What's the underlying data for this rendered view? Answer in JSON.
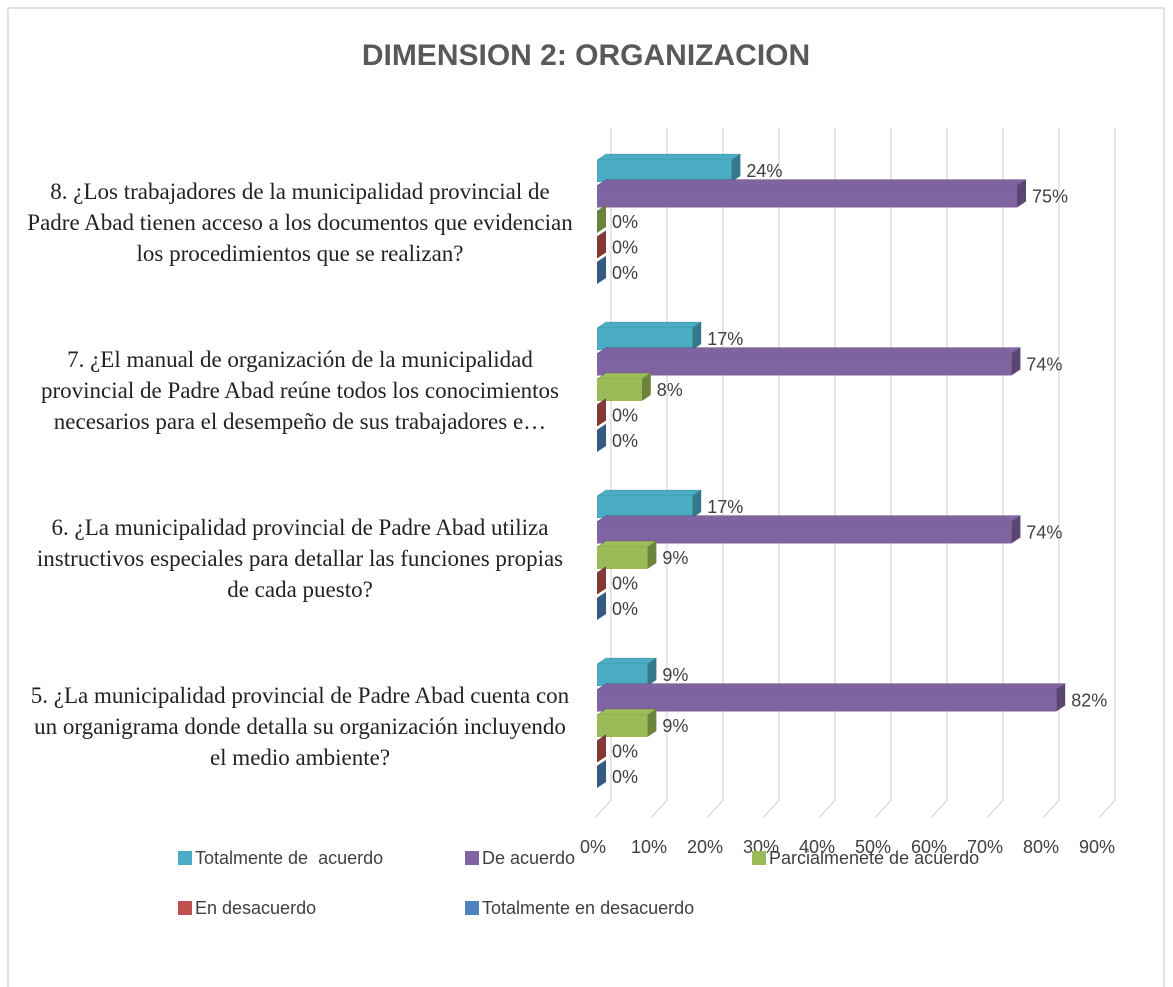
{
  "chart_data": {
    "type": "bar3d_horizontal",
    "title": "DIMENSION 2: ORGANIZACION",
    "categories": [
      "8. ¿Los trabajadores de la municipalidad provincial de Padre Abad tienen acceso a los documentos que evidencian los procedimientos que se realizan?",
      "7. ¿El manual de organización de la municipalidad provincial de Padre Abad reúne todos los conocimientos necesarios para el desempeño de sus trabajadores e…",
      "6. ¿La municipalidad provincial de Padre Abad utiliza instructivos especiales para detallar las funciones propias de cada puesto?",
      "5. ¿La municipalidad provincial de Padre Abad cuenta con un organigrama donde detalla su organización incluyendo el medio ambiente?"
    ],
    "series": [
      {
        "name": "Totalmente de  acuerdo",
        "color": "#4bacc6",
        "values": [
          24,
          17,
          17,
          9
        ],
        "value_labels": [
          "24%",
          "17%",
          "17%",
          "9%"
        ]
      },
      {
        "name": "De acuerdo",
        "color": "#8064a2",
        "values": [
          75,
          74,
          74,
          82
        ],
        "value_labels": [
          "75%",
          "74%",
          "74%",
          "82%"
        ]
      },
      {
        "name": "Parcialmenete de acuerdo",
        "color": "#9bbb59",
        "values": [
          0,
          8,
          9,
          9
        ],
        "value_labels": [
          "0%",
          "8%",
          "9%",
          "9%"
        ]
      },
      {
        "name": "En desacuerdo",
        "color": "#c0504d",
        "values": [
          0,
          0,
          0,
          0
        ],
        "value_labels": [
          "0%",
          "0%",
          "0%",
          "0%"
        ]
      },
      {
        "name": "Totalmente en desacuerdo",
        "color": "#4f81bd",
        "values": [
          0,
          0,
          0,
          0
        ],
        "value_labels": [
          "0%",
          "0%",
          "0%",
          "0%"
        ]
      }
    ],
    "xlim": [
      0,
      90
    ],
    "xticks": [
      {
        "value": 0,
        "label": "0%"
      },
      {
        "value": 10,
        "label": "10%"
      },
      {
        "value": 20,
        "label": "20%"
      },
      {
        "value": 30,
        "label": "30%"
      },
      {
        "value": 40,
        "label": "40%"
      },
      {
        "value": 50,
        "label": "50%"
      },
      {
        "value": 60,
        "label": "60%"
      },
      {
        "value": 70,
        "label": "70%"
      },
      {
        "value": 80,
        "label": "80%"
      },
      {
        "value": 90,
        "label": "90%"
      }
    ],
    "grid": true,
    "legend": "bottom"
  }
}
